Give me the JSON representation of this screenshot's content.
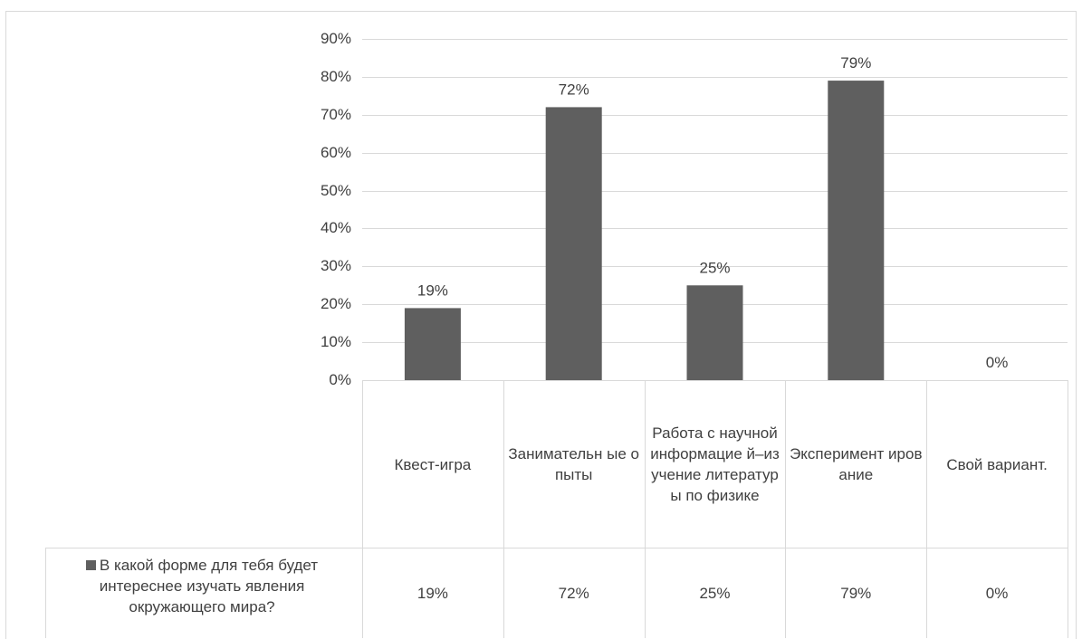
{
  "chart_data": {
    "type": "bar",
    "categories": [
      "Квест-игра",
      "Занимательные опыты",
      "Работа с научной информацией–изучение литературы по физике",
      "Экспериментирование",
      "Свой вариант."
    ],
    "category_display": [
      "Квест-игра",
      "Занимательн ые опыты",
      "Работа с научной информацие й–изучение литературы по физике",
      "Эксперимент ирование",
      "Свой вариант."
    ],
    "series": [
      {
        "name": "В какой форме для тебя будет интереснее изучать явления окружающего мира?",
        "values": [
          19,
          72,
          25,
          79,
          0
        ],
        "labels": [
          "19%",
          "72%",
          "25%",
          "79%",
          "0%"
        ],
        "color": "#5f5f5f"
      }
    ],
    "ylim": [
      0,
      90
    ],
    "y_ticks": [
      "0%",
      "10%",
      "20%",
      "30%",
      "40%",
      "50%",
      "60%",
      "70%",
      "80%",
      "90%"
    ],
    "grid": true,
    "legend": "data-table",
    "colors": {
      "bar": "#5f5f5f",
      "grid": "#d9d9d9",
      "text": "#404040"
    }
  }
}
